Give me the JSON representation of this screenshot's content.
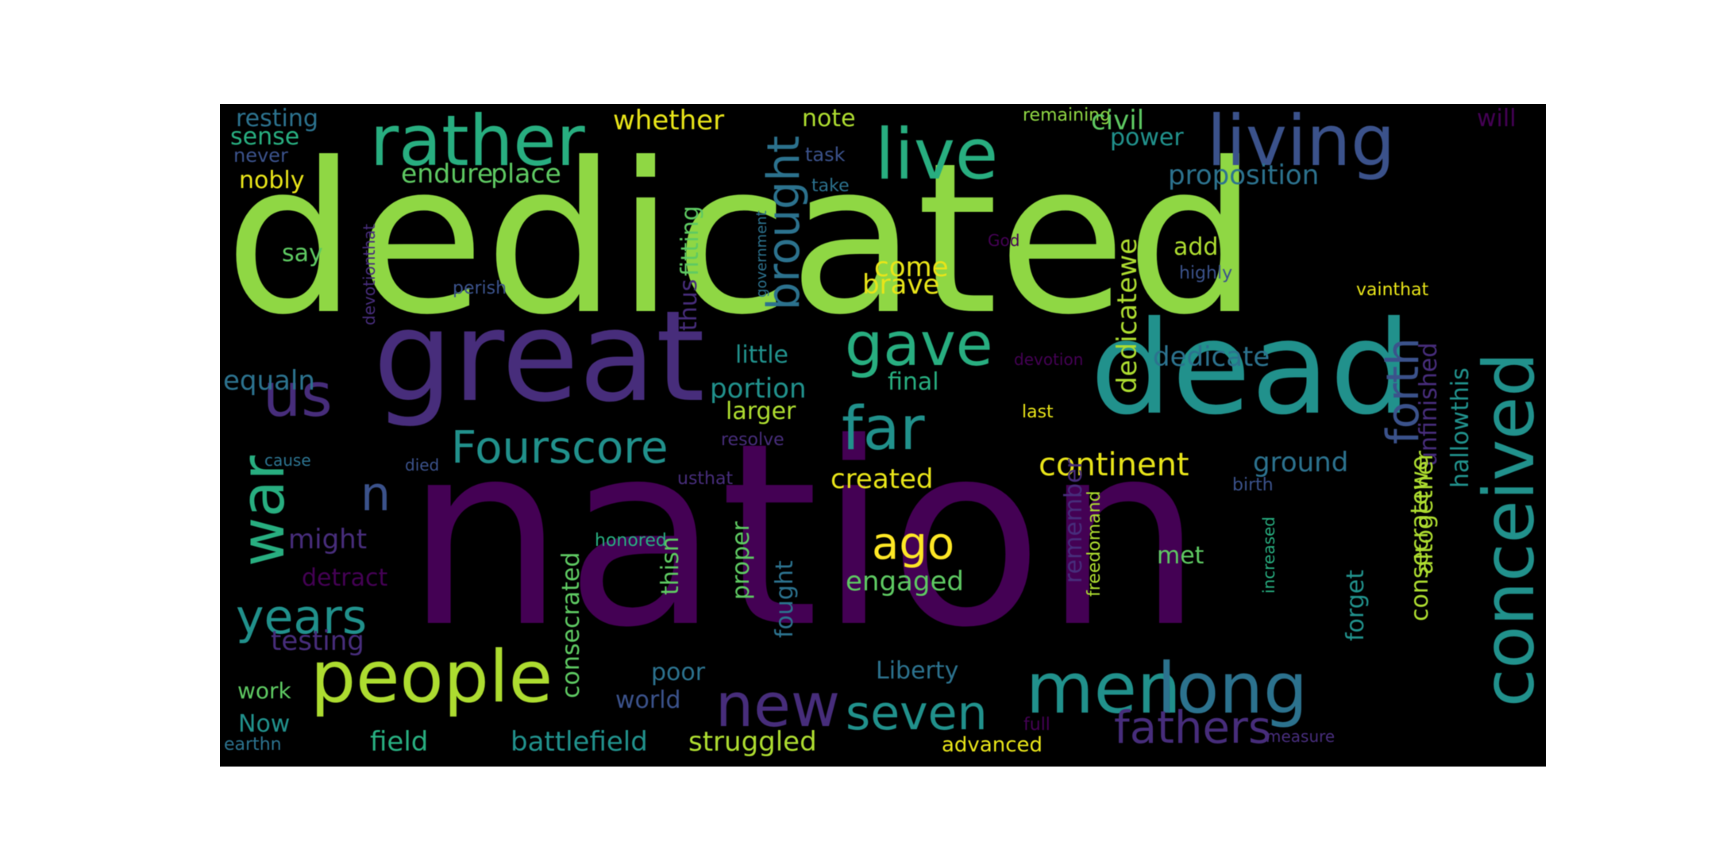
{
  "palette": {
    "purple": "#440154",
    "indigo": "#472d7b",
    "blue": "#3b528b",
    "steel": "#2c728e",
    "teal": "#21918c",
    "seagreen": "#28ae80",
    "green": "#5ec962",
    "lime": "#8fd744",
    "yellowgreen": "#addc30",
    "yellow": "#e8e419",
    "gold": "#fde725"
  },
  "words": [
    {
      "text": "dedicated",
      "color": "#8fd744"
    },
    {
      "text": "nation",
      "color": "#440154"
    },
    {
      "text": "great",
      "color": "#472d7b"
    },
    {
      "text": "dead",
      "color": "#21918c"
    },
    {
      "text": "rather",
      "color": "#28ae80"
    },
    {
      "text": "living",
      "color": "#3b528b"
    },
    {
      "text": "live",
      "color": "#28ae80"
    },
    {
      "text": "people",
      "color": "#addc30"
    },
    {
      "text": "conceived",
      "color": "#21918c"
    },
    {
      "text": "men",
      "color": "#21918c"
    },
    {
      "text": "long",
      "color": "#2c728e"
    },
    {
      "text": "new",
      "color": "#472d7b"
    },
    {
      "text": "gave",
      "color": "#28ae80"
    },
    {
      "text": "far",
      "color": "#21918c"
    },
    {
      "text": "us",
      "color": "#472d7b"
    },
    {
      "text": "war",
      "color": "#28ae80"
    },
    {
      "text": "Fourscore",
      "color": "#21918c"
    },
    {
      "text": "years",
      "color": "#21918c"
    },
    {
      "text": "seven",
      "color": "#21918c"
    },
    {
      "text": "fathers",
      "color": "#472d7b"
    },
    {
      "text": "ago",
      "color": "#fde725"
    },
    {
      "text": "brought",
      "color": "#2c728e"
    },
    {
      "text": "n",
      "color": "#3b528b"
    },
    {
      "text": "forth",
      "color": "#3b528b"
    },
    {
      "text": "continent",
      "color": "#e8e419"
    },
    {
      "text": "resting",
      "color": "#2c728e"
    },
    {
      "text": "sense",
      "color": "#28ae80"
    },
    {
      "text": "never",
      "color": "#3b528b"
    },
    {
      "text": "nobly",
      "color": "#e8e419"
    },
    {
      "text": "whether",
      "color": "#e8e419"
    },
    {
      "text": "note",
      "color": "#addc30"
    },
    {
      "text": "remaining",
      "color": "#8fd744"
    },
    {
      "text": "will",
      "color": "#440154"
    },
    {
      "text": "civil",
      "color": "#5ec962"
    },
    {
      "text": "power",
      "color": "#21918c"
    },
    {
      "text": "task",
      "color": "#3b528b"
    },
    {
      "text": "take",
      "color": "#2c728e"
    },
    {
      "text": "endure",
      "color": "#5ec962"
    },
    {
      "text": "place",
      "color": "#5ec962"
    },
    {
      "text": "proposition",
      "color": "#2c728e"
    },
    {
      "text": "devotionthat",
      "color": "#472d7b"
    },
    {
      "text": "fitting",
      "color": "#5ec962"
    },
    {
      "text": "say",
      "color": "#5ec962"
    },
    {
      "text": "perish",
      "color": "#3b528b"
    },
    {
      "text": "thus",
      "color": "#472d7b"
    },
    {
      "text": "government",
      "color": "#2c728e"
    },
    {
      "text": "God",
      "color": "#440154"
    },
    {
      "text": "come",
      "color": "#e8e419"
    },
    {
      "text": "brave",
      "color": "#e8e419"
    },
    {
      "text": "dedicatewe",
      "color": "#addc30"
    },
    {
      "text": "add",
      "color": "#addc30"
    },
    {
      "text": "highly",
      "color": "#3b528b"
    },
    {
      "text": "vainthat",
      "color": "#e8e419"
    },
    {
      "text": "little",
      "color": "#21918c"
    },
    {
      "text": "dedicate",
      "color": "#2c728e"
    },
    {
      "text": "unfinished",
      "color": "#472d7b"
    },
    {
      "text": "hallowthis",
      "color": "#21918c"
    },
    {
      "text": "equaln",
      "color": "#2c728e"
    },
    {
      "text": "portion",
      "color": "#21918c"
    },
    {
      "text": "final",
      "color": "#28ae80"
    },
    {
      "text": "devotion",
      "color": "#440154"
    },
    {
      "text": "larger",
      "color": "#addc30"
    },
    {
      "text": "last",
      "color": "#e8e419"
    },
    {
      "text": "resolve",
      "color": "#472d7b"
    },
    {
      "text": "cause",
      "color": "#2c728e"
    },
    {
      "text": "died",
      "color": "#3b528b"
    },
    {
      "text": "created",
      "color": "#e8e419"
    },
    {
      "text": "ground",
      "color": "#2c728e"
    },
    {
      "text": "usthat",
      "color": "#472d7b"
    },
    {
      "text": "birth",
      "color": "#3b528b"
    },
    {
      "text": "altogether",
      "color": "#addc30"
    },
    {
      "text": "remember",
      "color": "#472d7b"
    },
    {
      "text": "might",
      "color": "#472d7b"
    },
    {
      "text": "honored",
      "color": "#28ae80"
    },
    {
      "text": "met",
      "color": "#5ec962"
    },
    {
      "text": "detract",
      "color": "#440154"
    },
    {
      "text": "engaged",
      "color": "#5ec962"
    },
    {
      "text": "consecratewe",
      "color": "#addc30"
    },
    {
      "text": "freedomand",
      "color": "#addc30"
    },
    {
      "text": "increased",
      "color": "#28ae80"
    },
    {
      "text": "thisn",
      "color": "#5ec962"
    },
    {
      "text": "proper",
      "color": "#5ec962"
    },
    {
      "text": "fought",
      "color": "#2c728e"
    },
    {
      "text": "forget",
      "color": "#21918c"
    },
    {
      "text": "consecrated",
      "color": "#5ec962"
    },
    {
      "text": "testing",
      "color": "#472d7b"
    },
    {
      "text": "Liberty",
      "color": "#2c728e"
    },
    {
      "text": "poor",
      "color": "#2c728e"
    },
    {
      "text": "work",
      "color": "#5ec962"
    },
    {
      "text": "world",
      "color": "#3b528b"
    },
    {
      "text": "Now",
      "color": "#21918c"
    },
    {
      "text": "full",
      "color": "#440154"
    },
    {
      "text": "field",
      "color": "#28ae80"
    },
    {
      "text": "battlefield",
      "color": "#21918c"
    },
    {
      "text": "struggled",
      "color": "#addc30"
    },
    {
      "text": "measure",
      "color": "#472d7b"
    },
    {
      "text": "earthn",
      "color": "#2c728e"
    },
    {
      "text": "advanced",
      "color": "#e8e419"
    }
  ]
}
